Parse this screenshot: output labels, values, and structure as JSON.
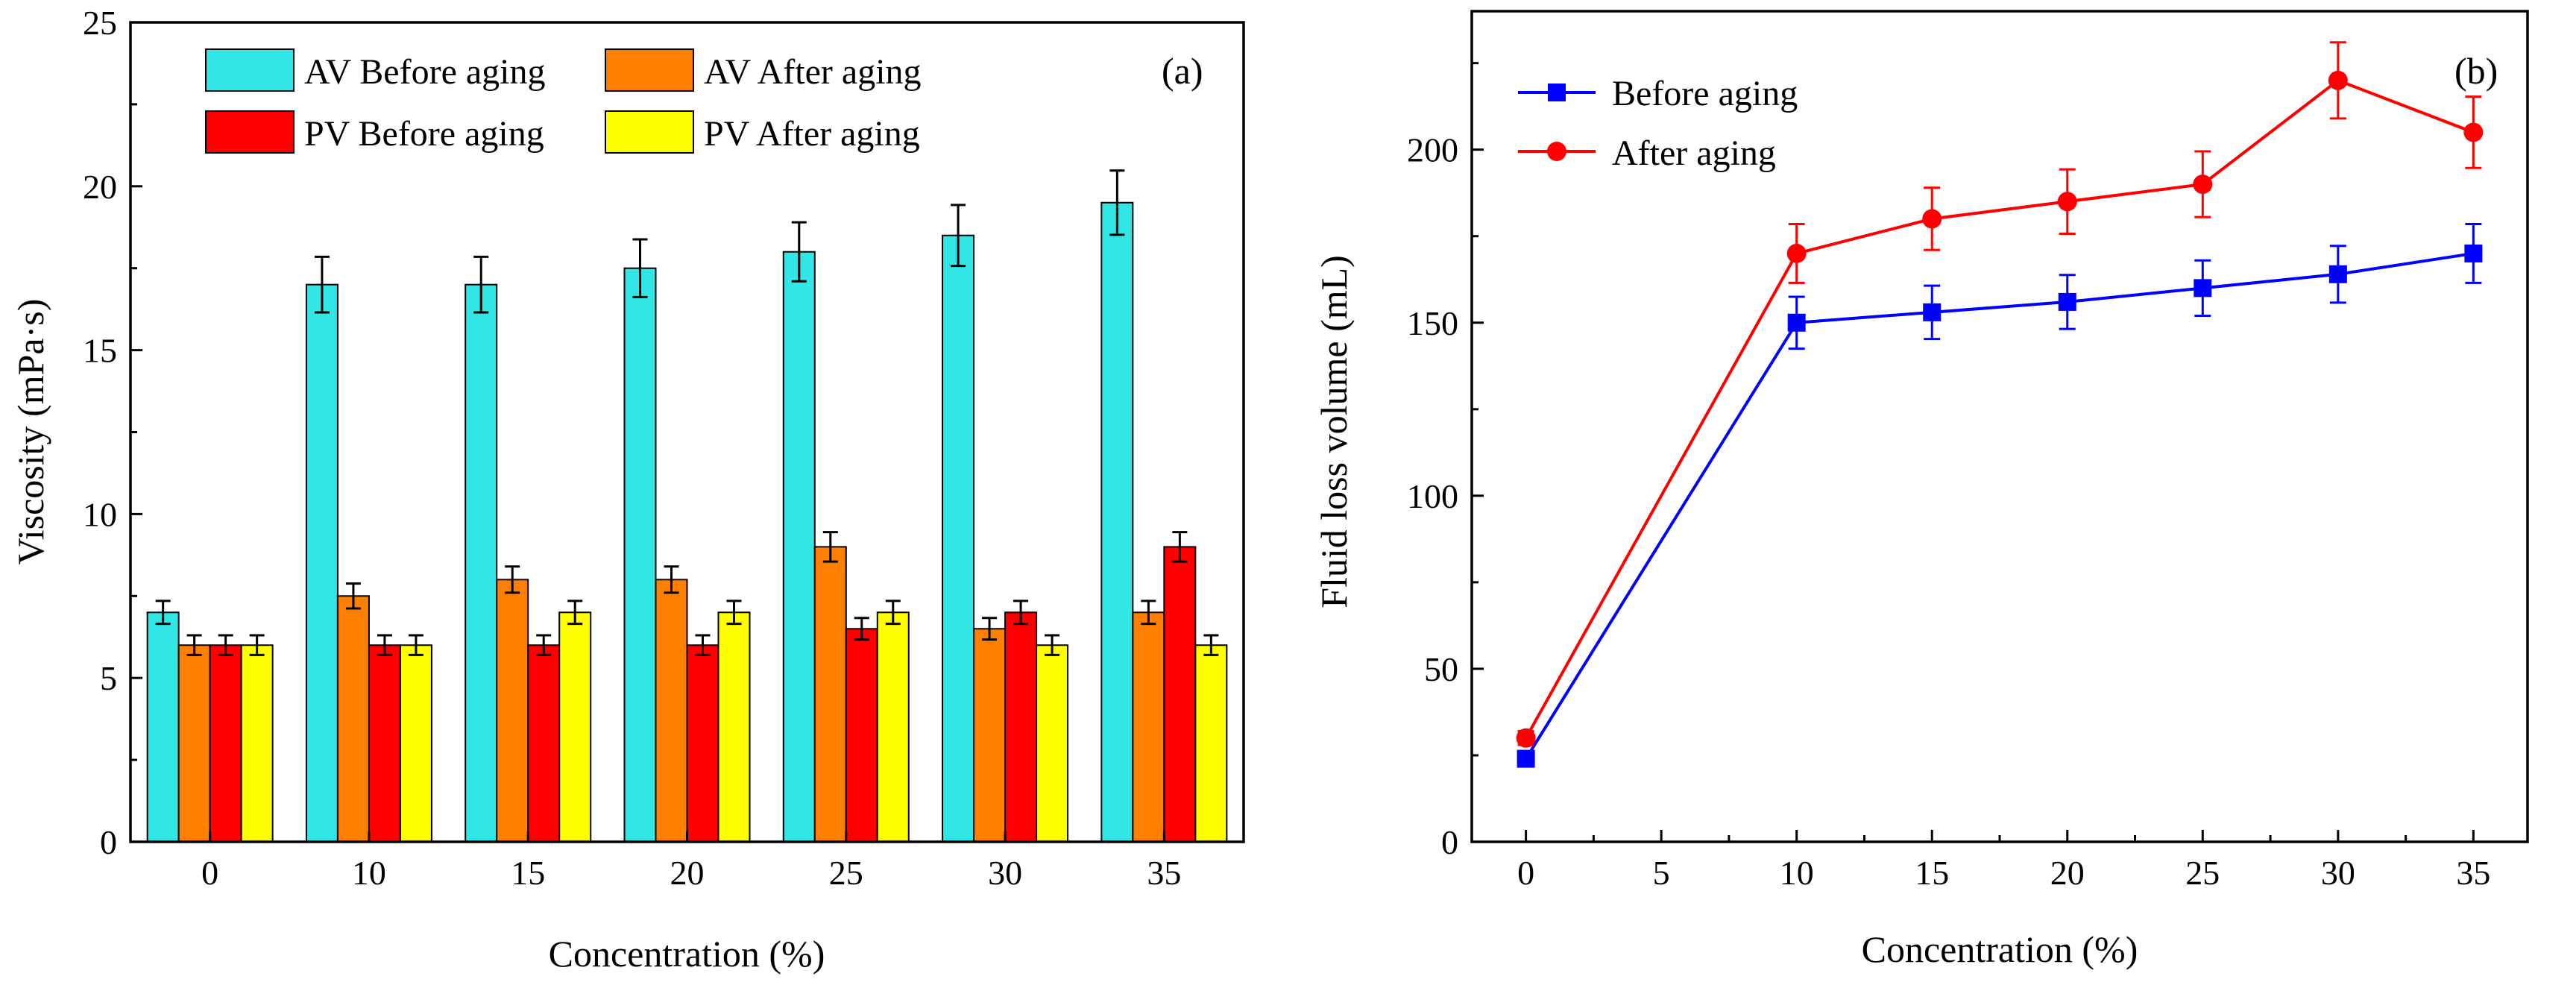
{
  "chart_data": [
    {
      "type": "bar",
      "panel_label": "(a)",
      "xlabel": "Concentration (%)",
      "ylabel": "Viscosity (mPa·s)",
      "categories": [
        "0",
        "10",
        "15",
        "20",
        "25",
        "30",
        "35"
      ],
      "ylim": [
        0,
        25
      ],
      "yticks": [
        "0",
        "5",
        "10",
        "15",
        "20",
        "25"
      ],
      "legend_position": "top-center",
      "series": [
        {
          "name": "AV Before aging",
          "color": "#33e6e6",
          "values": [
            7,
            17,
            17,
            17.5,
            18,
            18.5,
            19.5
          ],
          "errors": [
            0.35,
            0.85,
            0.85,
            0.88,
            0.9,
            0.93,
            0.98
          ]
        },
        {
          "name": "AV After aging",
          "color": "#ff8000",
          "values": [
            6,
            7.5,
            8,
            8,
            9,
            6.5,
            7
          ],
          "errors": [
            0.3,
            0.38,
            0.4,
            0.4,
            0.45,
            0.33,
            0.35
          ]
        },
        {
          "name": "PV Before aging",
          "color": "#ff0000",
          "values": [
            6,
            6,
            6,
            6,
            6.5,
            7,
            9
          ],
          "errors": [
            0.3,
            0.3,
            0.3,
            0.3,
            0.33,
            0.35,
            0.45
          ]
        },
        {
          "name": "PV After aging",
          "color": "#ffff00",
          "values": [
            6,
            6,
            7,
            7,
            7,
            6,
            6
          ],
          "errors": [
            0.3,
            0.3,
            0.35,
            0.35,
            0.35,
            0.3,
            0.3
          ]
        }
      ]
    },
    {
      "type": "line",
      "panel_label": "(b)",
      "xlabel": "Concentration (%)",
      "ylabel": "Fluid loss volume (mL)",
      "xlim": [
        -2,
        37
      ],
      "ylim": [
        0,
        240
      ],
      "xticks": [
        "0",
        "5",
        "10",
        "15",
        "20",
        "25",
        "30",
        "35"
      ],
      "yticks": [
        "0",
        "50",
        "100",
        "150",
        "200"
      ],
      "x": [
        0,
        10,
        15,
        20,
        25,
        30,
        35
      ],
      "legend_position": "top-left",
      "series": [
        {
          "name": "Before aging",
          "color": "#0000ff",
          "marker": "square",
          "values": [
            24,
            150,
            153,
            156,
            160,
            164,
            170
          ],
          "errors": [
            2,
            7.5,
            7.7,
            7.8,
            8,
            8.2,
            8.5
          ]
        },
        {
          "name": "After aging",
          "color": "#ff0000",
          "marker": "circle",
          "values": [
            30,
            170,
            180,
            185,
            190,
            220,
            205
          ],
          "errors": [
            2,
            8.5,
            9,
            9.3,
            9.5,
            11,
            10.3
          ]
        }
      ]
    }
  ]
}
